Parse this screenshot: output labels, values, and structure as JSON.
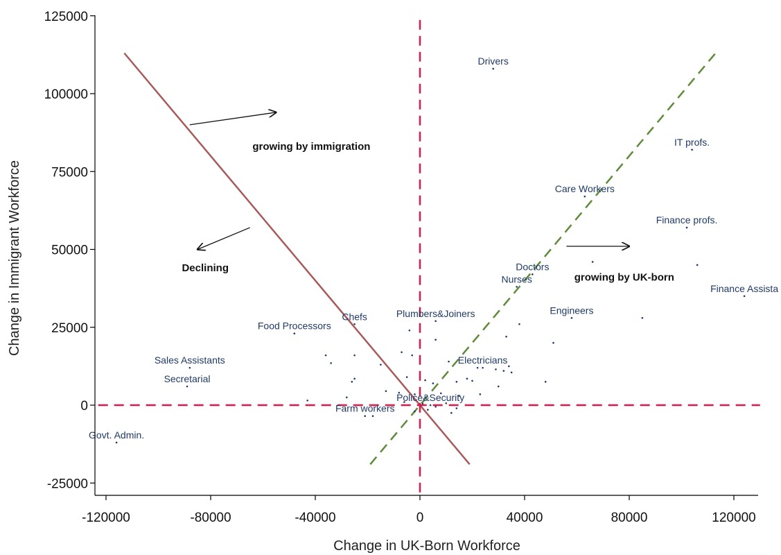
{
  "chart_data": {
    "type": "scatter",
    "xlabel": "Change in UK-Born Workforce",
    "ylabel": "Change in Immigrant Workforce",
    "xlim": [
      -125000,
      130000
    ],
    "ylim": [
      -30000,
      125000
    ],
    "x_ticks": [
      -120000,
      -80000,
      -40000,
      0,
      40000,
      80000,
      120000
    ],
    "y_ticks": [
      -25000,
      0,
      25000,
      50000,
      75000,
      100000,
      125000
    ],
    "x_tick_labels": [
      "-120000",
      "-80000",
      "-40000",
      "0",
      "40000",
      "80000",
      "120000"
    ],
    "y_tick_labels": [
      "-25000",
      "0",
      "25000",
      "50000",
      "75000",
      "100000",
      "125000"
    ],
    "grid": false,
    "labeled_points": [
      {
        "label": "Drivers",
        "x": 28000,
        "y": 108000
      },
      {
        "label": "IT profs.",
        "x": 104000,
        "y": 82000
      },
      {
        "label": "Care Workers",
        "x": 63000,
        "y": 67000
      },
      {
        "label": "Finance profs.",
        "x": 102000,
        "y": 57000
      },
      {
        "label": "Doctors",
        "x": 43000,
        "y": 42000
      },
      {
        "label": "Nurses",
        "x": 37000,
        "y": 38000
      },
      {
        "label": "Finance Assista",
        "x": 124000,
        "y": 35000
      },
      {
        "label": "Engineers",
        "x": 58000,
        "y": 28000
      },
      {
        "label": "Plumbers&Joiners",
        "x": 6000,
        "y": 27000
      },
      {
        "label": "Chefs",
        "x": -25000,
        "y": 26000
      },
      {
        "label": "Food Processors",
        "x": -48000,
        "y": 23000
      },
      {
        "label": "Sales Assistants",
        "x": -88000,
        "y": 12000
      },
      {
        "label": "Electricians",
        "x": 24000,
        "y": 12000
      },
      {
        "label": "Secretarial",
        "x": -89000,
        "y": 6000
      },
      {
        "label": "Police&Security",
        "x": 4000,
        "y": 0
      },
      {
        "label": "Farm workers",
        "x": -21000,
        "y": -3500
      },
      {
        "label": "Govt. Admin.",
        "x": -116000,
        "y": -12000
      }
    ],
    "unlabeled_points": [
      {
        "x": 66000,
        "y": 46000
      },
      {
        "x": 106000,
        "y": 45000
      },
      {
        "x": 85000,
        "y": 28000
      },
      {
        "x": 38000,
        "y": 26000
      },
      {
        "x": -4000,
        "y": 24000
      },
      {
        "x": 6000,
        "y": 21000
      },
      {
        "x": 33000,
        "y": 22000
      },
      {
        "x": 51000,
        "y": 20000
      },
      {
        "x": -36000,
        "y": 16000
      },
      {
        "x": -25000,
        "y": 16000
      },
      {
        "x": -7000,
        "y": 17000
      },
      {
        "x": -3000,
        "y": 16000
      },
      {
        "x": -34000,
        "y": 13500
      },
      {
        "x": -15000,
        "y": 13000
      },
      {
        "x": 11000,
        "y": 14000
      },
      {
        "x": 22000,
        "y": 12000
      },
      {
        "x": 32000,
        "y": 11000
      },
      {
        "x": 34000,
        "y": 12500
      },
      {
        "x": 35000,
        "y": 10500
      },
      {
        "x": 29000,
        "y": 11500
      },
      {
        "x": -25000,
        "y": 8500
      },
      {
        "x": -26000,
        "y": 7500
      },
      {
        "x": -5000,
        "y": 9000
      },
      {
        "x": 2000,
        "y": 8000
      },
      {
        "x": 5000,
        "y": 7000
      },
      {
        "x": 18000,
        "y": 8500
      },
      {
        "x": 20000,
        "y": 7800
      },
      {
        "x": 14000,
        "y": 7500
      },
      {
        "x": 30000,
        "y": 6000
      },
      {
        "x": 48000,
        "y": 7500
      },
      {
        "x": -13000,
        "y": 4500
      },
      {
        "x": -8000,
        "y": 4000
      },
      {
        "x": -2000,
        "y": 3500
      },
      {
        "x": 8000,
        "y": 3800
      },
      {
        "x": 15000,
        "y": 3000
      },
      {
        "x": 23000,
        "y": 3500
      },
      {
        "x": -28000,
        "y": 2500
      },
      {
        "x": -43000,
        "y": 1500
      },
      {
        "x": -6000,
        "y": 1000
      },
      {
        "x": 1000,
        "y": 500
      },
      {
        "x": 10000,
        "y": 600
      },
      {
        "x": 14000,
        "y": -1000
      },
      {
        "x": -2000,
        "y": -2000
      },
      {
        "x": 3000,
        "y": -1500
      },
      {
        "x": 6000,
        "y": -500
      },
      {
        "x": 12000,
        "y": -2500
      },
      {
        "x": -18000,
        "y": -3500
      }
    ],
    "reference_lines": [
      {
        "name": "declining-boundary",
        "style": "solid",
        "color": "#a85a5a",
        "x1": -113000,
        "y1": 113000,
        "x2": 19000,
        "y2": -19000
      },
      {
        "name": "equal-growth",
        "style": "dashed",
        "color": "#5e8a3a",
        "x1": -19000,
        "y1": -19000,
        "x2": 113000,
        "y2": 113000
      },
      {
        "name": "zero-x",
        "style": "dashed",
        "color": "#d81b4a",
        "x1": 0,
        "y1": -28000,
        "x2": 0,
        "y2": 125000
      },
      {
        "name": "zero-y",
        "style": "dashed",
        "color": "#d81b4a",
        "x1": -123000,
        "y1": 0,
        "x2": 130000,
        "y2": 0
      }
    ],
    "annotations": [
      {
        "text": "growing by immigration",
        "x": -64000,
        "y": 82000
      },
      {
        "text": "Declining",
        "x": -91000,
        "y": 43000
      },
      {
        "text": "growing by UK-born",
        "x": 59000,
        "y": 40000
      }
    ],
    "arrows": [
      {
        "x1": -88000,
        "y1": 90000,
        "x2": -55000,
        "y2": 94000
      },
      {
        "x1": -65000,
        "y1": 57000,
        "x2": -85000,
        "y2": 50000
      },
      {
        "x1": 56000,
        "y1": 51000,
        "x2": 80000,
        "y2": 51000
      }
    ],
    "colors": {
      "axis": "#000000",
      "point": "#1f3a68",
      "point_label": "#1f3a68",
      "annotation": "#111111"
    }
  }
}
